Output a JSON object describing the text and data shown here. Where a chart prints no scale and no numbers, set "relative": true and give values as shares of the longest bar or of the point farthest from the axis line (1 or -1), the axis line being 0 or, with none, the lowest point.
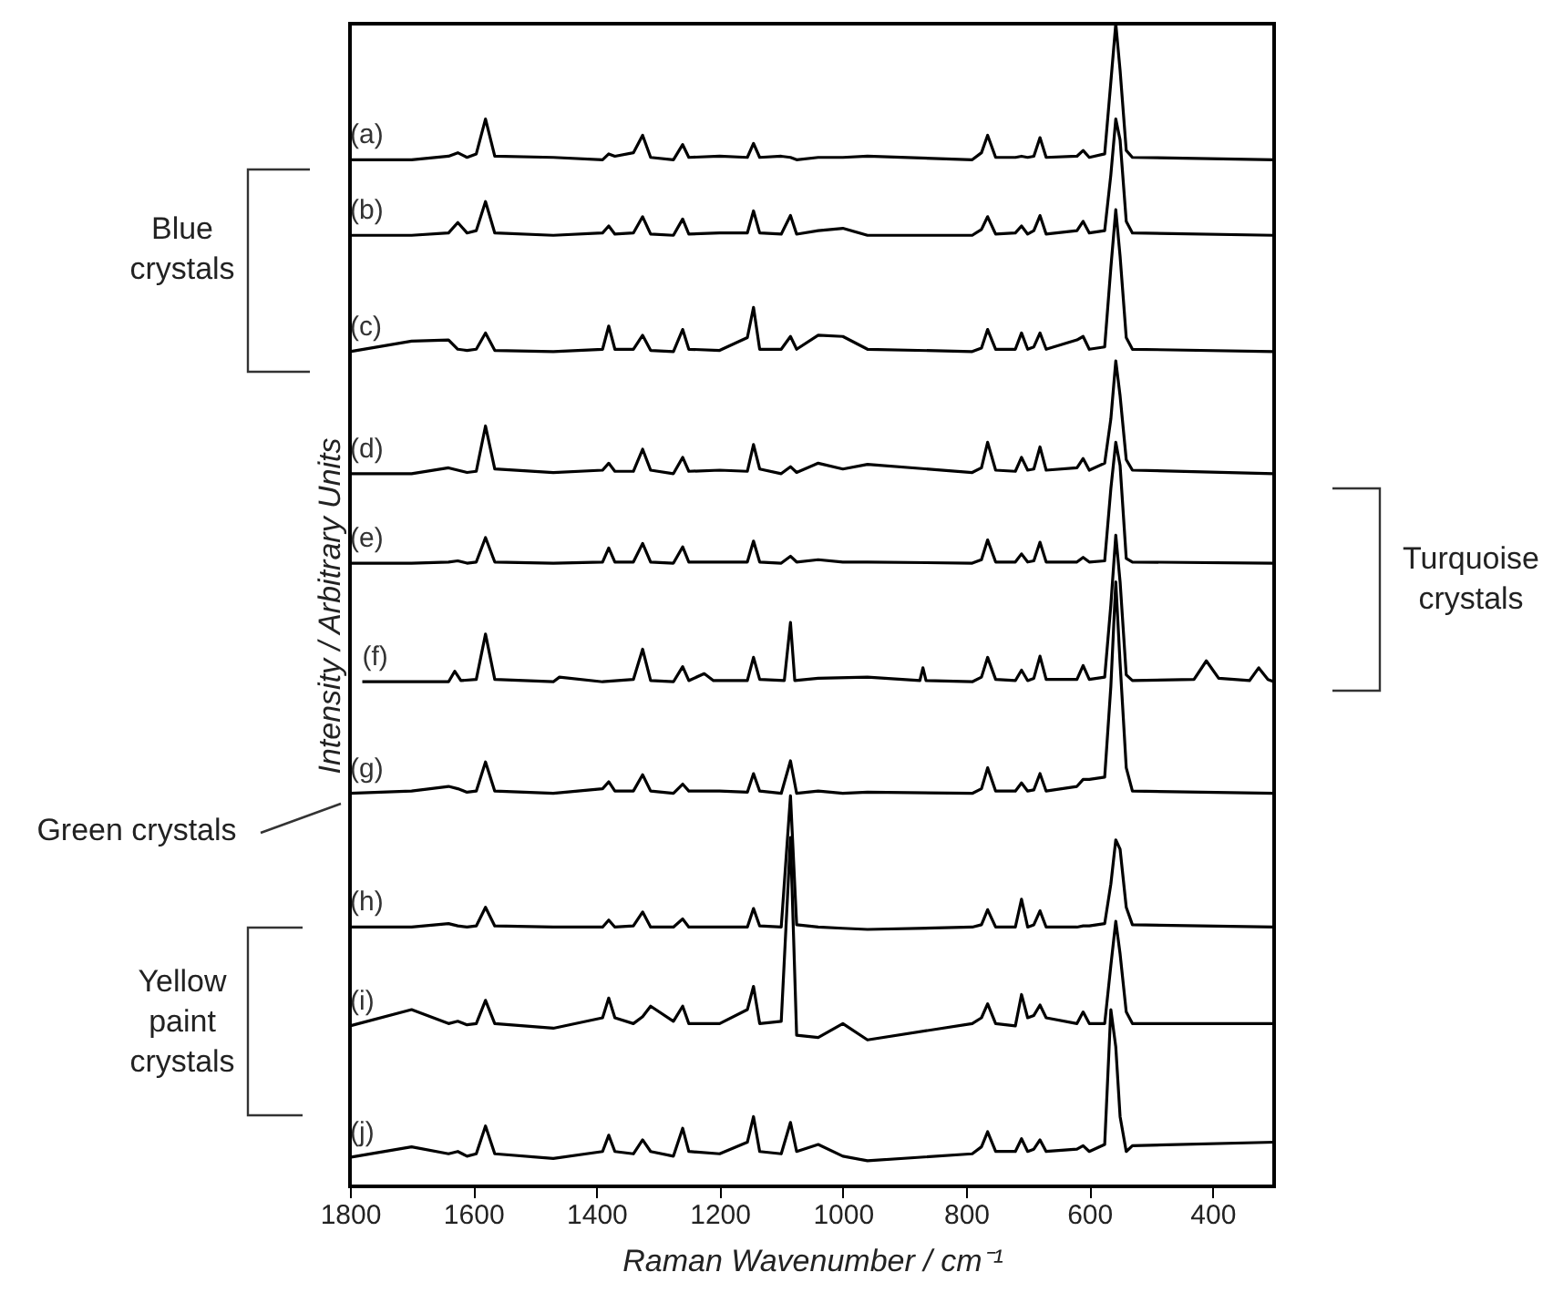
{
  "chart_data": {
    "type": "line",
    "relative": true,
    "xlabel": "Raman Wavenumber / cm⁻¹",
    "ylabel": "Intensity / Arbitrary Units",
    "xlim": [
      1800,
      300
    ],
    "xticks": [
      1800,
      1600,
      1400,
      1200,
      1000,
      800,
      600,
      400
    ],
    "x": [
      1800,
      1700,
      1640,
      1625,
      1610,
      1595,
      1580,
      1565,
      1470,
      1390,
      1380,
      1370,
      1340,
      1325,
      1312,
      1275,
      1260,
      1250,
      1200,
      1155,
      1145,
      1135,
      1100,
      1085,
      1075,
      1040,
      1000,
      960,
      790,
      775,
      765,
      752,
      720,
      710,
      700,
      690,
      680,
      670,
      620,
      610,
      600,
      575,
      565,
      557,
      550,
      540,
      530,
      300
    ],
    "series": [
      {
        "name": "(a)",
        "color": "#000000",
        "values": [
          0.883,
          0.883,
          0.886,
          0.889,
          0.885,
          0.888,
          0.918,
          0.886,
          0.885,
          0.883,
          0.888,
          0.886,
          0.889,
          0.904,
          0.885,
          0.883,
          0.896,
          0.885,
          0.886,
          0.885,
          0.897,
          0.885,
          0.886,
          0.885,
          0.883,
          0.885,
          0.885,
          0.886,
          0.883,
          0.889,
          0.904,
          0.885,
          0.885,
          0.886,
          0.885,
          0.886,
          0.902,
          0.885,
          0.886,
          0.891,
          0.885,
          0.888,
          0.95,
          1.0,
          0.96,
          0.891,
          0.885,
          0.883
        ]
      },
      {
        "name": "(b)",
        "color": "#000000",
        "values": [
          0.818,
          0.818,
          0.82,
          0.829,
          0.82,
          0.822,
          0.847,
          0.82,
          0.818,
          0.82,
          0.826,
          0.819,
          0.82,
          0.834,
          0.819,
          0.818,
          0.832,
          0.819,
          0.82,
          0.82,
          0.839,
          0.82,
          0.819,
          0.835,
          0.819,
          0.822,
          0.824,
          0.818,
          0.818,
          0.823,
          0.834,
          0.819,
          0.82,
          0.826,
          0.819,
          0.822,
          0.835,
          0.819,
          0.822,
          0.83,
          0.82,
          0.822,
          0.87,
          0.918,
          0.9,
          0.83,
          0.82,
          0.818
        ]
      },
      {
        "name": "(c)",
        "color": "#000000",
        "values": [
          0.718,
          0.727,
          0.728,
          0.72,
          0.719,
          0.72,
          0.734,
          0.719,
          0.718,
          0.72,
          0.74,
          0.72,
          0.72,
          0.732,
          0.719,
          0.718,
          0.737,
          0.72,
          0.719,
          0.73,
          0.756,
          0.72,
          0.72,
          0.731,
          0.72,
          0.732,
          0.731,
          0.72,
          0.718,
          0.721,
          0.737,
          0.72,
          0.72,
          0.734,
          0.72,
          0.722,
          0.734,
          0.72,
          0.728,
          0.731,
          0.72,
          0.722,
          0.79,
          0.84,
          0.8,
          0.73,
          0.72,
          0.718
        ]
      },
      {
        "name": "(d)",
        "color": "#000000",
        "values": [
          0.613,
          0.613,
          0.618,
          0.616,
          0.614,
          0.615,
          0.654,
          0.617,
          0.614,
          0.616,
          0.622,
          0.615,
          0.615,
          0.634,
          0.616,
          0.613,
          0.627,
          0.615,
          0.616,
          0.615,
          0.638,
          0.617,
          0.613,
          0.619,
          0.614,
          0.622,
          0.617,
          0.621,
          0.614,
          0.618,
          0.64,
          0.616,
          0.615,
          0.627,
          0.616,
          0.617,
          0.636,
          0.616,
          0.618,
          0.626,
          0.616,
          0.622,
          0.66,
          0.71,
          0.68,
          0.625,
          0.616,
          0.613
        ]
      },
      {
        "name": "(e)",
        "color": "#000000",
        "values": [
          0.536,
          0.536,
          0.537,
          0.538,
          0.536,
          0.537,
          0.558,
          0.537,
          0.536,
          0.537,
          0.549,
          0.537,
          0.537,
          0.553,
          0.537,
          0.536,
          0.55,
          0.537,
          0.537,
          0.537,
          0.555,
          0.537,
          0.536,
          0.542,
          0.537,
          0.539,
          0.537,
          0.537,
          0.536,
          0.539,
          0.556,
          0.537,
          0.537,
          0.544,
          0.537,
          0.538,
          0.554,
          0.537,
          0.537,
          0.541,
          0.537,
          0.538,
          0.6,
          0.64,
          0.62,
          0.54,
          0.537,
          0.536
        ]
      },
      {
        "name": "(f)",
        "color": "#000000",
        "x": [
          1780,
          1700,
          1640,
          1630,
          1620,
          1595,
          1580,
          1565,
          1470,
          1460,
          1390,
          1340,
          1325,
          1312,
          1275,
          1260,
          1250,
          1225,
          1210,
          1155,
          1145,
          1135,
          1095,
          1085,
          1078,
          1040,
          960,
          875,
          870,
          865,
          790,
          775,
          765,
          752,
          720,
          710,
          700,
          690,
          680,
          670,
          620,
          610,
          600,
          575,
          565,
          557,
          550,
          540,
          530,
          430,
          410,
          390,
          340,
          325,
          310,
          300
        ],
        "values": [
          0.434,
          0.434,
          0.434,
          0.443,
          0.435,
          0.436,
          0.475,
          0.436,
          0.434,
          0.438,
          0.434,
          0.436,
          0.462,
          0.435,
          0.434,
          0.447,
          0.435,
          0.441,
          0.435,
          0.435,
          0.455,
          0.436,
          0.435,
          0.485,
          0.435,
          0.437,
          0.438,
          0.435,
          0.446,
          0.435,
          0.434,
          0.438,
          0.455,
          0.436,
          0.435,
          0.444,
          0.435,
          0.437,
          0.456,
          0.436,
          0.436,
          0.448,
          0.436,
          0.438,
          0.5,
          0.56,
          0.52,
          0.44,
          0.435,
          0.436,
          0.452,
          0.437,
          0.435,
          0.446,
          0.436,
          0.434
        ]
      },
      {
        "name": "(g)",
        "color": "#000000",
        "values": [
          0.338,
          0.34,
          0.344,
          0.342,
          0.339,
          0.34,
          0.365,
          0.34,
          0.338,
          0.342,
          0.348,
          0.34,
          0.34,
          0.354,
          0.34,
          0.338,
          0.346,
          0.34,
          0.34,
          0.339,
          0.355,
          0.34,
          0.338,
          0.366,
          0.338,
          0.34,
          0.338,
          0.339,
          0.338,
          0.342,
          0.36,
          0.34,
          0.34,
          0.347,
          0.34,
          0.341,
          0.355,
          0.34,
          0.344,
          0.35,
          0.35,
          0.352,
          0.43,
          0.52,
          0.45,
          0.36,
          0.34,
          0.338
        ]
      },
      {
        "name": "(h)",
        "color": "#000000",
        "values": [
          0.223,
          0.223,
          0.226,
          0.224,
          0.223,
          0.224,
          0.24,
          0.224,
          0.223,
          0.223,
          0.229,
          0.223,
          0.224,
          0.236,
          0.223,
          0.223,
          0.23,
          0.223,
          0.223,
          0.223,
          0.239,
          0.224,
          0.223,
          0.336,
          0.225,
          0.223,
          0.222,
          0.221,
          0.223,
          0.225,
          0.238,
          0.223,
          0.223,
          0.247,
          0.223,
          0.225,
          0.237,
          0.223,
          0.223,
          0.224,
          0.224,
          0.226,
          0.26,
          0.298,
          0.29,
          0.24,
          0.225,
          0.223
        ]
      },
      {
        "name": "(i)",
        "color": "#000000",
        "values": [
          0.138,
          0.152,
          0.14,
          0.142,
          0.139,
          0.14,
          0.16,
          0.14,
          0.136,
          0.145,
          0.162,
          0.145,
          0.14,
          0.146,
          0.155,
          0.142,
          0.155,
          0.14,
          0.14,
          0.152,
          0.172,
          0.14,
          0.142,
          0.3,
          0.13,
          0.128,
          0.14,
          0.126,
          0.14,
          0.145,
          0.157,
          0.14,
          0.138,
          0.165,
          0.145,
          0.147,
          0.156,
          0.145,
          0.14,
          0.15,
          0.14,
          0.14,
          0.19,
          0.228,
          0.2,
          0.15,
          0.14,
          0.14
        ]
      },
      {
        "name": "(j)",
        "color": "#000000",
        "values": [
          0.025,
          0.034,
          0.028,
          0.03,
          0.026,
          0.028,
          0.052,
          0.028,
          0.024,
          0.03,
          0.044,
          0.03,
          0.028,
          0.04,
          0.03,
          0.026,
          0.05,
          0.03,
          0.028,
          0.038,
          0.06,
          0.03,
          0.028,
          0.055,
          0.03,
          0.036,
          0.026,
          0.022,
          0.028,
          0.034,
          0.047,
          0.03,
          0.03,
          0.041,
          0.03,
          0.032,
          0.04,
          0.03,
          0.032,
          0.035,
          0.03,
          0.036,
          0.152,
          0.12,
          0.06,
          0.03,
          0.035,
          0.038
        ]
      }
    ],
    "annotations": [
      "Blue crystals",
      "Turquoise crystals",
      "Green crystals",
      "Yellow paint crystals"
    ]
  }
}
